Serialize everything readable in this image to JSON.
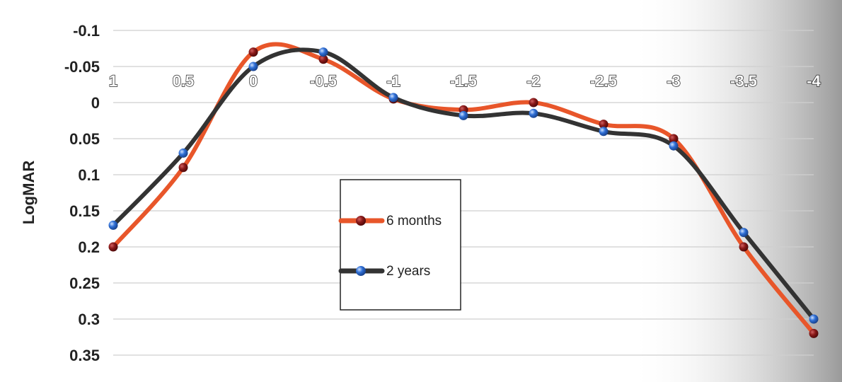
{
  "chart_data": {
    "type": "line",
    "ylabel": "LogMAR",
    "xlabel": "",
    "title": "",
    "x": [
      1,
      0.5,
      0,
      -0.5,
      -1,
      -1.5,
      -2,
      -2.5,
      -3,
      -3.5,
      -4
    ],
    "x_tick_labels": [
      "1",
      "0.5",
      "0",
      "-0.5",
      "-1",
      "-1.5",
      "-2",
      "-2.5",
      "-3",
      "-3.5",
      "-4"
    ],
    "y_tick_labels": [
      "-0.1",
      "-0.05",
      "0",
      "0.05",
      "0.1",
      "0.15",
      "0.2",
      "0.25",
      "0.3",
      "0.35"
    ],
    "ylim": [
      -0.1,
      0.35
    ],
    "y_inverted": true,
    "grid": true,
    "legend_position": "center",
    "series": [
      {
        "name": "6 months",
        "color": "#e8562a",
        "marker_color": "#8b1a1a",
        "values": [
          0.2,
          0.09,
          -0.07,
          -0.06,
          -0.005,
          0.01,
          0.0,
          0.03,
          0.05,
          0.2,
          0.32
        ]
      },
      {
        "name": "2 years",
        "color": "#333333",
        "marker_color": "#2f6fd6",
        "values": [
          0.17,
          0.07,
          -0.05,
          -0.07,
          -0.007,
          0.018,
          0.015,
          0.04,
          0.06,
          0.18,
          0.3
        ]
      }
    ]
  }
}
